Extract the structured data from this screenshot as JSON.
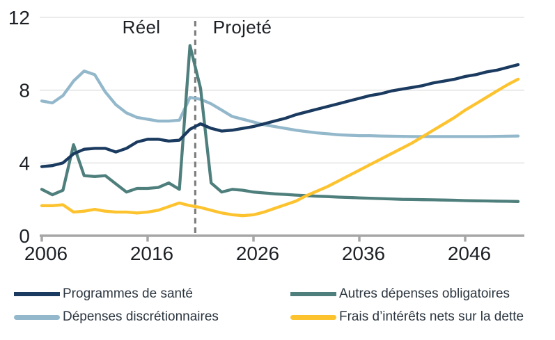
{
  "chart_data": {
    "type": "line",
    "title": "",
    "xlabel": "",
    "ylabel": "",
    "ylim": [
      0,
      12
    ],
    "yticks": [
      0,
      4,
      8,
      12
    ],
    "xticks": [
      2006,
      2016,
      2026,
      2036,
      2046
    ],
    "grid": "horizontal",
    "divider_year": 2020.5,
    "annotations": {
      "left": "Réel",
      "right": "Projeté"
    },
    "axis_color": "#a6a6a6",
    "gridline_color": "#d9d9d9",
    "divider_color": "#7f7f7f",
    "tick_text_color": "#1d2126",
    "years": [
      2006,
      2007,
      2008,
      2009,
      2010,
      2011,
      2012,
      2013,
      2014,
      2015,
      2016,
      2017,
      2018,
      2019,
      2020,
      2021,
      2022,
      2023,
      2024,
      2025,
      2026,
      2027,
      2028,
      2029,
      2030,
      2031,
      2032,
      2033,
      2034,
      2035,
      2036,
      2037,
      2038,
      2039,
      2040,
      2041,
      2042,
      2043,
      2044,
      2045,
      2046,
      2047,
      2048,
      2049,
      2050,
      2051
    ],
    "series": [
      {
        "name": "Programmes de santé",
        "color": "#1a3a5f",
        "values": [
          3.8,
          3.85,
          4.0,
          4.5,
          4.75,
          4.8,
          4.8,
          4.6,
          4.8,
          5.15,
          5.3,
          5.3,
          5.2,
          5.25,
          5.85,
          6.15,
          5.9,
          5.75,
          5.8,
          5.9,
          6.0,
          6.15,
          6.3,
          6.45,
          6.65,
          6.8,
          6.95,
          7.1,
          7.25,
          7.4,
          7.55,
          7.7,
          7.8,
          7.95,
          8.05,
          8.15,
          8.25,
          8.4,
          8.5,
          8.6,
          8.75,
          8.85,
          9.0,
          9.1,
          9.25,
          9.4
        ]
      },
      {
        "name": "Dépenses discrétionnaires",
        "color": "#93b8cb",
        "values": [
          7.4,
          7.3,
          7.7,
          8.5,
          9.05,
          8.85,
          7.9,
          7.2,
          6.75,
          6.5,
          6.4,
          6.3,
          6.3,
          6.35,
          7.6,
          7.5,
          7.25,
          6.9,
          6.55,
          6.4,
          6.25,
          6.1,
          6.0,
          5.9,
          5.8,
          5.72,
          5.65,
          5.6,
          5.55,
          5.52,
          5.5,
          5.5,
          5.48,
          5.47,
          5.46,
          5.45,
          5.45,
          5.45,
          5.45,
          5.45,
          5.45,
          5.45,
          5.45,
          5.46,
          5.47,
          5.48
        ]
      },
      {
        "name": "Autres dépenses obligatoires",
        "color": "#4e7f7c",
        "values": [
          2.55,
          2.25,
          2.5,
          5.0,
          3.3,
          3.25,
          3.3,
          2.85,
          2.4,
          2.6,
          2.6,
          2.65,
          2.9,
          2.55,
          10.45,
          8.1,
          2.9,
          2.4,
          2.55,
          2.5,
          2.4,
          2.35,
          2.3,
          2.27,
          2.23,
          2.2,
          2.17,
          2.15,
          2.12,
          2.1,
          2.08,
          2.06,
          2.04,
          2.02,
          2.0,
          1.99,
          1.98,
          1.97,
          1.96,
          1.95,
          1.93,
          1.92,
          1.91,
          1.9,
          1.89,
          1.88
        ]
      },
      {
        "name": "Frais d’intérêts nets sur la dette",
        "color": "#fdc32f",
        "values": [
          1.65,
          1.65,
          1.7,
          1.3,
          1.35,
          1.45,
          1.35,
          1.3,
          1.3,
          1.25,
          1.3,
          1.4,
          1.6,
          1.8,
          1.65,
          1.55,
          1.4,
          1.25,
          1.15,
          1.1,
          1.15,
          1.3,
          1.5,
          1.7,
          1.9,
          2.2,
          2.45,
          2.7,
          3.0,
          3.3,
          3.6,
          3.9,
          4.2,
          4.5,
          4.8,
          5.1,
          5.45,
          5.8,
          6.15,
          6.5,
          6.9,
          7.25,
          7.6,
          7.95,
          8.3,
          8.6
        ]
      }
    ],
    "draw_order": [
      1,
      2,
      0,
      3
    ]
  },
  "legend": {
    "items": [
      {
        "label": "Programmes de santé",
        "series": 0
      },
      {
        "label": "Dépenses discrétionnaires",
        "series": 1
      },
      {
        "label": "Autres dépenses obligatoires",
        "series": 2
      },
      {
        "label": "Frais d’intérêts nets sur la dette",
        "series": 3
      }
    ],
    "text_color": "#2c3640"
  }
}
